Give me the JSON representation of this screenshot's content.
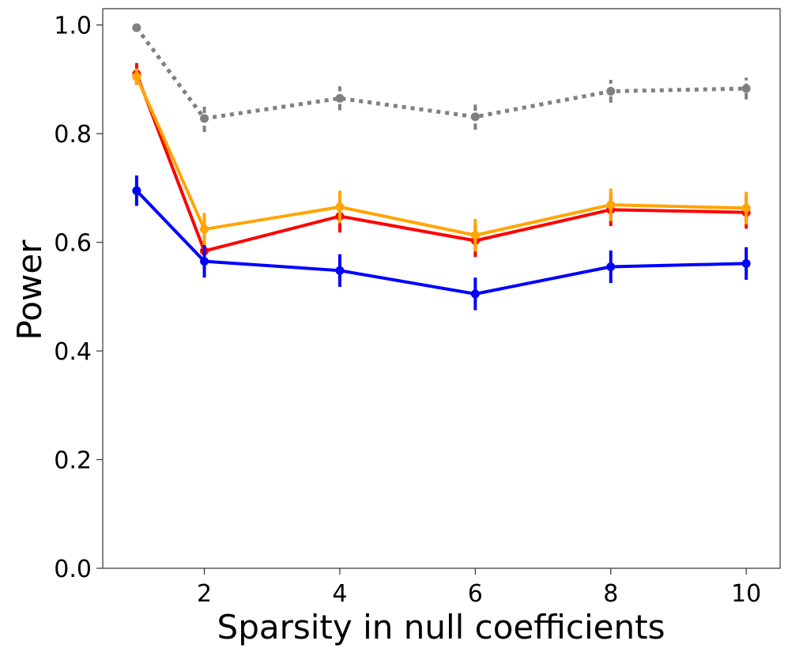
{
  "chart_data": {
    "type": "line",
    "title": "",
    "xlabel": "Sparsity in null coefficients",
    "ylabel": "Power",
    "xlim": [
      0.5,
      10.5
    ],
    "ylim": [
      0.0,
      1.03
    ],
    "grid": false,
    "legend": "none",
    "x": [
      1,
      2,
      4,
      6,
      8,
      10
    ],
    "x_ticks": [
      2,
      4,
      6,
      8,
      10
    ],
    "x_tick_labels": [
      "2",
      "4",
      "6",
      "8",
      "10"
    ],
    "y_ticks": [
      0.0,
      0.2,
      0.4,
      0.6,
      0.8,
      1.0
    ],
    "y_tick_labels": [
      "0.0",
      "0.2",
      "0.4",
      "0.6",
      "0.8",
      "1.0"
    ],
    "series": [
      {
        "name": "gray",
        "color": "#808080",
        "dashed": true,
        "values": [
          0.995,
          0.828,
          0.865,
          0.831,
          0.878,
          0.883
        ],
        "errors": [
          0.0,
          0.025,
          0.022,
          0.024,
          0.021,
          0.02
        ]
      },
      {
        "name": "red",
        "color": "#ff0000",
        "dashed": false,
        "values": [
          0.91,
          0.584,
          0.648,
          0.603,
          0.66,
          0.655
        ],
        "errors": [
          0.02,
          0.03,
          0.03,
          0.03,
          0.03,
          0.03
        ]
      },
      {
        "name": "orange",
        "color": "#ffa500",
        "dashed": false,
        "values": [
          0.905,
          0.624,
          0.665,
          0.613,
          0.669,
          0.663
        ],
        "errors": [
          0.015,
          0.03,
          0.03,
          0.03,
          0.03,
          0.03
        ]
      },
      {
        "name": "blue",
        "color": "#0000ff",
        "dashed": false,
        "values": [
          0.695,
          0.565,
          0.548,
          0.505,
          0.555,
          0.561
        ],
        "errors": [
          0.028,
          0.03,
          0.03,
          0.03,
          0.03,
          0.03
        ]
      }
    ]
  }
}
